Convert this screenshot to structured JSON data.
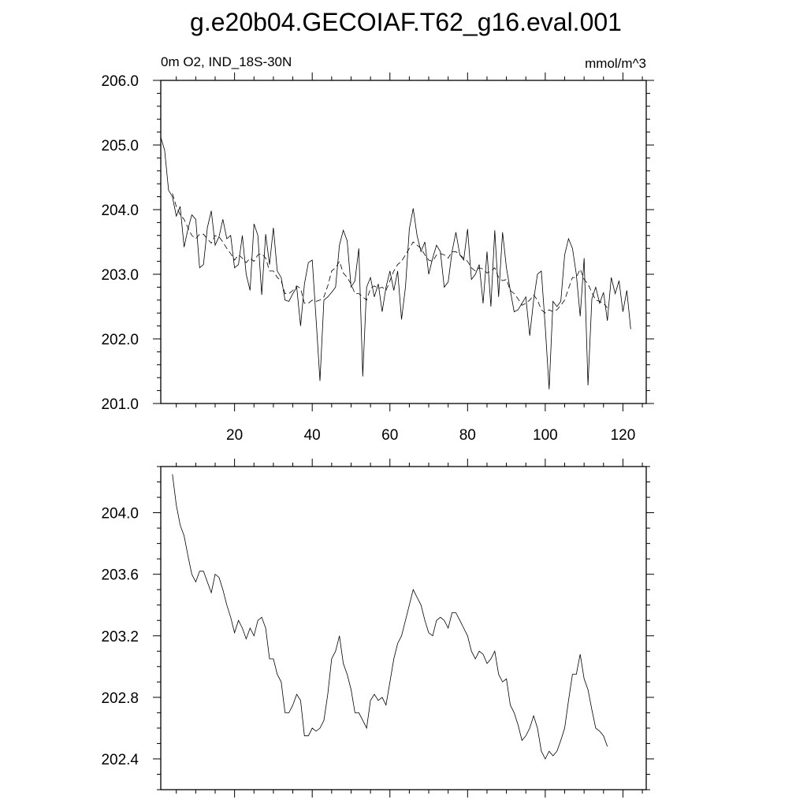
{
  "title": "g.e20b04.GECOIAF.T62_g16.eval.001",
  "chart_data": [
    {
      "type": "line",
      "left_label": "0m O2, IND_18S-30N",
      "right_label": "mmol/m^3",
      "xlim": [
        1,
        126
      ],
      "ylim": [
        201.0,
        206.0
      ],
      "x_ticks": [
        20,
        40,
        60,
        80,
        100,
        120
      ],
      "x_tick_labels": [
        "20",
        "40",
        "60",
        "80",
        "100",
        "120"
      ],
      "y_ticks": [
        201.0,
        202.0,
        203.0,
        204.0,
        205.0,
        206.0
      ],
      "y_tick_labels": [
        "201.0",
        "202.0",
        "203.0",
        "204.0",
        "205.0",
        "206.0"
      ],
      "grid": false,
      "series": [
        {
          "style": "solid",
          "x_start": 1,
          "values": [
            205.12,
            204.92,
            204.3,
            204.2,
            203.9,
            204.05,
            203.42,
            203.7,
            203.92,
            203.85,
            203.1,
            203.15,
            203.72,
            203.98,
            203.45,
            203.58,
            203.85,
            203.55,
            203.6,
            203.1,
            203.15,
            203.6,
            203.0,
            202.75,
            203.78,
            203.6,
            202.68,
            203.62,
            203.15,
            203.72,
            203.05,
            202.95,
            202.6,
            202.58,
            202.7,
            202.8,
            202.2,
            202.85,
            203.18,
            203.22,
            202.3,
            201.35,
            202.6,
            202.65,
            202.72,
            202.8,
            203.45,
            203.68,
            203.52,
            202.8,
            202.9,
            203.4,
            201.42,
            202.8,
            202.95,
            202.65,
            202.85,
            202.42,
            202.8,
            203.05,
            202.75,
            203.05,
            202.3,
            202.8,
            203.7,
            204.02,
            203.6,
            203.35,
            203.5,
            203.0,
            203.25,
            203.45,
            203.35,
            202.8,
            202.88,
            203.35,
            203.65,
            203.3,
            203.22,
            203.7,
            202.92,
            203.0,
            203.15,
            202.55,
            203.35,
            202.5,
            203.68,
            202.65,
            203.65,
            203.1,
            202.75,
            202.42,
            202.45,
            202.55,
            202.65,
            202.05,
            202.6,
            203.0,
            203.05,
            202.18,
            201.22,
            202.58,
            202.5,
            202.58,
            203.3,
            203.55,
            203.4,
            203.0,
            202.35,
            203.25,
            201.28,
            202.62,
            202.8,
            202.55,
            202.72,
            202.28,
            202.95,
            202.7,
            202.9,
            202.42,
            202.75,
            202.15
          ]
        },
        {
          "style": "dashed",
          "x_start": 4,
          "values": [
            204.25,
            204.05,
            203.92,
            203.85,
            203.72,
            203.6,
            203.55,
            203.62,
            203.62,
            203.55,
            203.48,
            203.6,
            203.58,
            203.5,
            203.4,
            203.32,
            203.22,
            203.3,
            203.25,
            203.18,
            203.25,
            203.2,
            203.3,
            203.32,
            203.25,
            203.05,
            203.05,
            202.95,
            202.9,
            202.7,
            202.7,
            202.75,
            202.82,
            202.78,
            202.55,
            202.55,
            202.6,
            202.58,
            202.6,
            202.65,
            202.82,
            203.05,
            203.1,
            203.2,
            203.02,
            202.95,
            202.85,
            202.7,
            202.7,
            202.65,
            202.6,
            202.78,
            202.82,
            202.78,
            202.8,
            202.75,
            202.9,
            203.05,
            203.15,
            203.2,
            203.3,
            203.4,
            203.5,
            203.45,
            203.4,
            203.3,
            203.22,
            203.2,
            203.3,
            203.32,
            203.3,
            203.25,
            203.35,
            203.35,
            203.3,
            203.25,
            203.2,
            203.1,
            203.05,
            203.1,
            203.08,
            203.02,
            203.05,
            203.1,
            202.95,
            202.9,
            202.92,
            202.75,
            202.7,
            202.62,
            202.52,
            202.55,
            202.6,
            202.68,
            202.6,
            202.45,
            202.4,
            202.45,
            202.42,
            202.45,
            202.52,
            202.6,
            202.78,
            202.95,
            202.95,
            203.08,
            202.92,
            202.85,
            202.72,
            202.6,
            202.58,
            202.55,
            202.48
          ]
        }
      ]
    },
    {
      "type": "line",
      "xlim": [
        1,
        126
      ],
      "ylim": [
        202.2,
        204.3
      ],
      "x_ticks": [
        20,
        40,
        60,
        80,
        100,
        120
      ],
      "y_ticks": [
        202.4,
        202.8,
        203.2,
        203.6,
        204.0
      ],
      "y_tick_labels": [
        "202.4",
        "202.8",
        "203.2",
        "203.6",
        "204.0"
      ],
      "grid": false,
      "series": [
        {
          "style": "solid",
          "x_start": 4,
          "values": [
            204.25,
            204.05,
            203.92,
            203.85,
            203.72,
            203.6,
            203.55,
            203.62,
            203.62,
            203.55,
            203.48,
            203.6,
            203.58,
            203.5,
            203.4,
            203.32,
            203.22,
            203.3,
            203.25,
            203.18,
            203.25,
            203.2,
            203.3,
            203.32,
            203.25,
            203.05,
            203.05,
            202.95,
            202.9,
            202.7,
            202.7,
            202.75,
            202.82,
            202.78,
            202.55,
            202.55,
            202.6,
            202.58,
            202.6,
            202.65,
            202.82,
            203.05,
            203.1,
            203.2,
            203.02,
            202.95,
            202.85,
            202.7,
            202.7,
            202.65,
            202.6,
            202.78,
            202.82,
            202.78,
            202.8,
            202.75,
            202.9,
            203.05,
            203.15,
            203.2,
            203.3,
            203.4,
            203.5,
            203.45,
            203.4,
            203.3,
            203.22,
            203.2,
            203.3,
            203.32,
            203.3,
            203.25,
            203.35,
            203.35,
            203.3,
            203.25,
            203.2,
            203.1,
            203.05,
            203.1,
            203.08,
            203.02,
            203.05,
            203.1,
            202.95,
            202.9,
            202.92,
            202.75,
            202.7,
            202.62,
            202.52,
            202.55,
            202.6,
            202.68,
            202.6,
            202.45,
            202.4,
            202.45,
            202.42,
            202.45,
            202.52,
            202.6,
            202.78,
            202.95,
            202.95,
            203.08,
            202.92,
            202.85,
            202.72,
            202.6,
            202.58,
            202.55,
            202.48
          ]
        }
      ]
    }
  ]
}
